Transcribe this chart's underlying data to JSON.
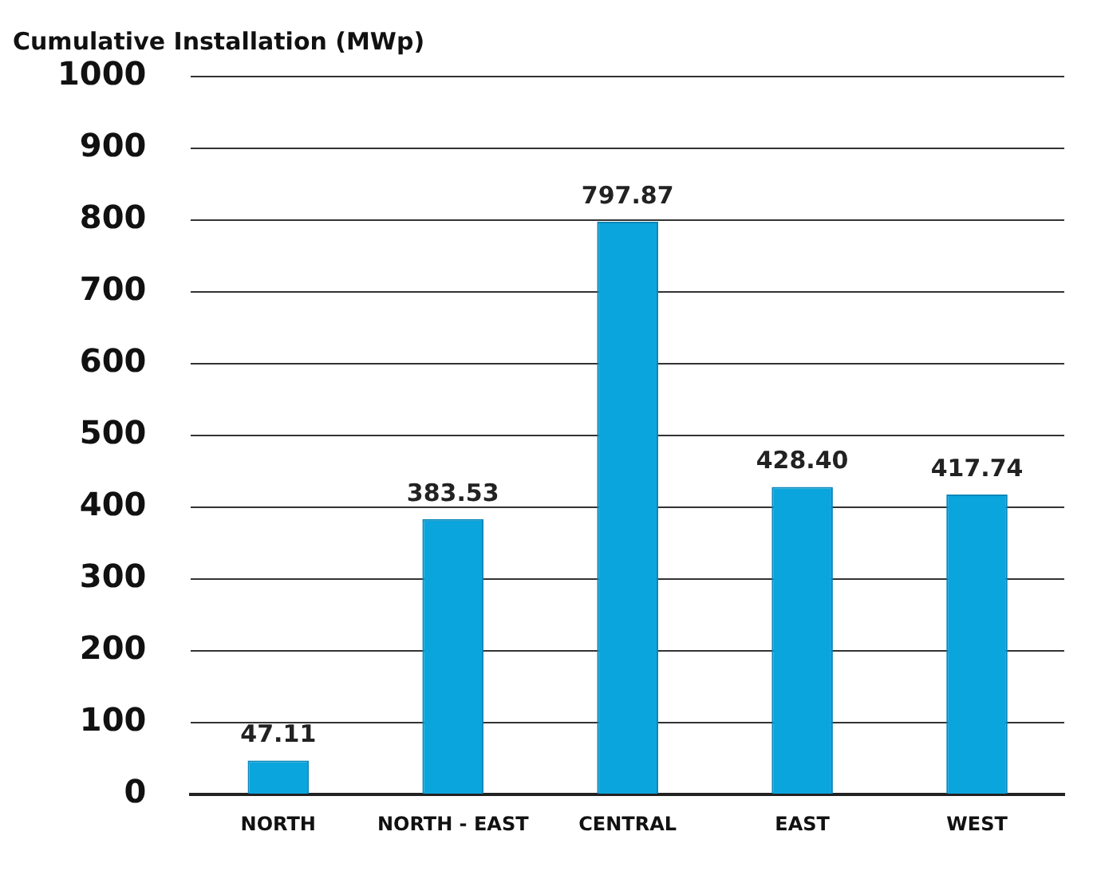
{
  "chart_data": {
    "type": "bar",
    "title": "Cumulative Installation (MWp)",
    "categories": [
      "NORTH",
      "NORTH - EAST",
      "CENTRAL",
      "EAST",
      "WEST"
    ],
    "values": [
      47.11,
      383.53,
      797.87,
      428.4,
      417.74
    ],
    "value_labels": [
      "47.11",
      "383.53",
      "797.87",
      "428.40",
      "417.74"
    ],
    "color": "#0ba5dd",
    "ylim": [
      0,
      1000
    ],
    "yticks": [
      0,
      100,
      200,
      300,
      400,
      500,
      600,
      700,
      800,
      900,
      1000
    ],
    "grid": "y",
    "legend": false
  }
}
